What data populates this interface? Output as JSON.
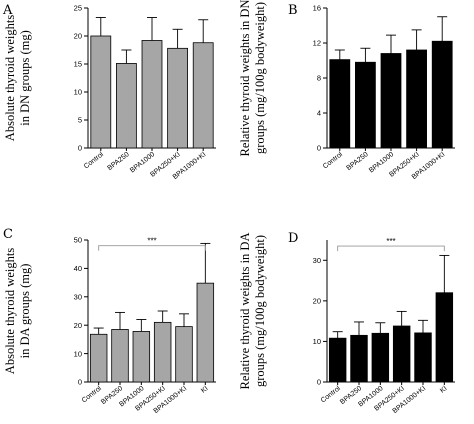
{
  "chart_data": [
    {
      "panel": "A",
      "type": "bar",
      "ylabel": "Absolute thyroid weights in DN groups (mg)",
      "ylabel_lines": [
        "Absolute thyroid weights",
        "in DN groups (mg)"
      ],
      "categories": [
        "Control",
        "BPA250",
        "BPA1000",
        "BPA250+KI",
        "BPA1000+KI"
      ],
      "values": [
        20.0,
        15.1,
        19.2,
        17.8,
        18.8
      ],
      "errors": [
        3.3,
        2.4,
        4.1,
        3.4,
        4.1
      ],
      "ylim": [
        0,
        25
      ],
      "yticks": [
        0,
        5,
        10,
        15,
        20,
        25
      ],
      "bar_color": "#a6a6a6",
      "significance": null
    },
    {
      "panel": "B",
      "type": "bar",
      "ylabel": "Relative thyroid weights in DN groups (mg/100g bodyweight)",
      "ylabel_lines": [
        "Relative thyroid weights in DN",
        "groups (mg/100g bodyweight)"
      ],
      "categories": [
        "Control",
        "BPA250",
        "BPA1000",
        "BPA250+KI",
        "BPA1000+KI"
      ],
      "values": [
        10.1,
        9.8,
        10.8,
        11.2,
        12.2
      ],
      "errors": [
        1.1,
        1.6,
        2.1,
        2.3,
        2.8
      ],
      "ylim": [
        0,
        16
      ],
      "yticks": [
        0,
        4,
        8,
        12,
        16
      ],
      "bar_color": "#000000",
      "significance": null
    },
    {
      "panel": "C",
      "type": "bar",
      "ylabel": "Absolute thyroid weights in DA groups (mg)",
      "ylabel_lines": [
        "Absolute thyroid weights",
        "in DA groups (mg)"
      ],
      "categories": [
        "Control",
        "BPA250",
        "BPA1000",
        "BPA250+KI",
        "BPA1000+KI",
        "KI"
      ],
      "values": [
        16.8,
        18.5,
        17.8,
        21.0,
        19.5,
        34.8
      ],
      "errors": [
        2.2,
        6.0,
        4.2,
        4.0,
        4.5,
        14.0
      ],
      "ylim": [
        0,
        50
      ],
      "yticks": [
        0,
        10,
        20,
        30,
        40,
        50
      ],
      "bar_color": "#a6a6a6",
      "significance": {
        "from": "Control",
        "to": "KI",
        "label": "***",
        "y": 48
      }
    },
    {
      "panel": "D",
      "type": "bar",
      "ylabel": "Relative thyroid weights in DA groups (mg/100g bodyweight)",
      "ylabel_lines": [
        "Relative thyroid weights in DA",
        "groups (mg/100g bodyweight)"
      ],
      "categories": [
        "Control",
        "BPA250",
        "BPA1000",
        "BPA250+KI",
        "BPA1000+KI",
        "KI"
      ],
      "values": [
        10.8,
        11.5,
        12.0,
        13.8,
        12.1,
        22.0
      ],
      "errors": [
        1.6,
        3.3,
        2.6,
        3.6,
        3.1,
        9.2
      ],
      "ylim": [
        0,
        35
      ],
      "yticks": [
        0,
        10,
        20,
        30
      ],
      "bar_color": "#000000",
      "significance": {
        "from": "Control",
        "to": "KI",
        "label": "***",
        "y": 33.5
      }
    }
  ]
}
